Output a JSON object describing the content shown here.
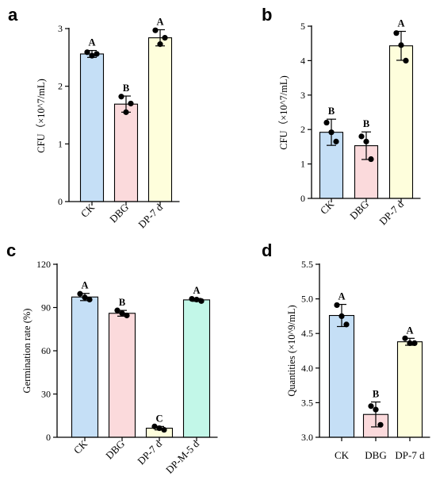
{
  "chart_data": [
    {
      "panel": "a",
      "type": "bar",
      "categories": [
        "CK",
        "DBG",
        "DP-7 d"
      ],
      "values": [
        2.56,
        1.69,
        2.84
      ],
      "errors": [
        0.06,
        0.14,
        0.14
      ],
      "points": [
        [
          2.59,
          2.53,
          2.56
        ],
        [
          1.82,
          1.55,
          1.7
        ],
        [
          2.97,
          2.73,
          2.84
        ]
      ],
      "letters": [
        "A",
        "B",
        "A"
      ],
      "colors": [
        "#c5dff6",
        "#fbdadc",
        "#fefedc"
      ],
      "ylabel": "CFU（×10^7/mL)",
      "ylim": [
        0,
        3
      ],
      "yticks": [
        0,
        1,
        2,
        3
      ]
    },
    {
      "panel": "b",
      "type": "bar",
      "categories": [
        "CK",
        "DBG",
        "DP-7 d"
      ],
      "values": [
        1.92,
        1.53,
        4.43
      ],
      "errors": [
        0.38,
        0.4,
        0.42
      ],
      "points": [
        [
          2.2,
          1.92,
          1.65
        ],
        [
          1.8,
          1.65,
          1.14
        ],
        [
          4.8,
          4.45,
          4.0
        ]
      ],
      "letters": [
        "B",
        "B",
        "A"
      ],
      "colors": [
        "#c5dff6",
        "#fbdadc",
        "#fefedc"
      ],
      "ylabel": "CFU（×10^7/mL)",
      "ylim": [
        0,
        5
      ],
      "yticks": [
        0,
        1,
        2,
        3,
        4,
        5
      ]
    },
    {
      "panel": "c",
      "type": "bar",
      "categories": [
        "CK",
        "DBG",
        "DP-7 d",
        "DP-M-5 d"
      ],
      "values": [
        97.3,
        86.0,
        6.3,
        95.3
      ],
      "errors": [
        2.5,
        2.0,
        1.2,
        1.0
      ],
      "points": [
        [
          99.5,
          97.0,
          95.5
        ],
        [
          88.0,
          86.0,
          84.5
        ],
        [
          7.5,
          6.3,
          5.2
        ],
        [
          96.0,
          95.5,
          94.5
        ]
      ],
      "letters": [
        "A",
        "B",
        "C",
        "A"
      ],
      "colors": [
        "#c5dff6",
        "#fbdadc",
        "#fefedc",
        "#c2f7e8"
      ],
      "ylabel": "Germination rate (%)",
      "ylim": [
        0,
        120
      ],
      "yticks": [
        0,
        30,
        60,
        90,
        120
      ]
    },
    {
      "panel": "d",
      "type": "bar",
      "categories": [
        "CK",
        "DBG",
        "DP-7 d"
      ],
      "values": [
        4.76,
        3.33,
        4.38
      ],
      "errors": [
        0.16,
        0.18,
        0.05
      ],
      "points": [
        [
          4.91,
          4.75,
          4.63
        ],
        [
          3.45,
          3.4,
          3.18
        ],
        [
          4.43,
          4.36,
          4.36
        ]
      ],
      "letters": [
        "A",
        "B",
        "A"
      ],
      "colors": [
        "#c5dff6",
        "#fbdadc",
        "#fefedc"
      ],
      "ylabel": "Quantities (×10^9/mL)",
      "ylim": [
        3.0,
        5.5
      ],
      "yticks": [
        3.0,
        3.5,
        4.0,
        4.5,
        5.0,
        5.5
      ]
    }
  ]
}
